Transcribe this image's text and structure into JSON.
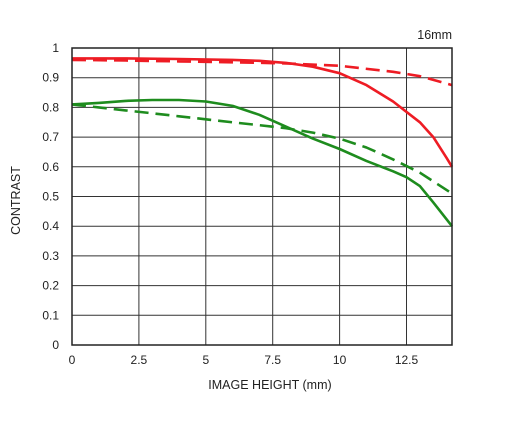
{
  "chart_data": {
    "type": "line",
    "title": "16mm",
    "xlabel": "IMAGE HEIGHT (mm)",
    "ylabel": "CONTRAST",
    "xlim": [
      0,
      14.2
    ],
    "ylim": [
      0,
      1
    ],
    "xticks": [
      0,
      2.5,
      5,
      7.5,
      10,
      12.5
    ],
    "xtick_labels": [
      "0",
      "2.5",
      "5",
      "7.5",
      "10",
      "12.5"
    ],
    "yticks": [
      0,
      0.1,
      0.2,
      0.3,
      0.4,
      0.5,
      0.6,
      0.7,
      0.8,
      0.9,
      1
    ],
    "ytick_labels": [
      "0",
      "0.1",
      "0.2",
      "0.3",
      "0.4",
      "0.5",
      "0.6",
      "0.7",
      "0.8",
      "0.9",
      "1"
    ],
    "grid": true,
    "series": [
      {
        "color": "#ee1c24",
        "dash": "solid",
        "x": [
          0,
          2,
          4,
          6,
          7,
          8,
          9,
          10,
          11,
          12,
          13,
          13.5,
          14,
          14.2
        ],
        "y": [
          0.965,
          0.965,
          0.963,
          0.96,
          0.957,
          0.95,
          0.937,
          0.915,
          0.875,
          0.82,
          0.75,
          0.7,
          0.63,
          0.6
        ]
      },
      {
        "color": "#ee1c24",
        "dash": "dashed",
        "x": [
          0,
          2,
          4,
          6,
          8,
          10,
          12,
          13,
          14.2
        ],
        "y": [
          0.96,
          0.958,
          0.955,
          0.952,
          0.948,
          0.94,
          0.92,
          0.905,
          0.875
        ]
      },
      {
        "color": "#1e8c1e",
        "dash": "solid",
        "x": [
          0,
          1,
          2,
          3,
          4,
          5,
          6,
          7,
          8,
          9,
          10,
          11,
          12,
          12.5,
          13,
          13.5,
          14.2
        ],
        "y": [
          0.81,
          0.815,
          0.822,
          0.825,
          0.825,
          0.82,
          0.805,
          0.775,
          0.735,
          0.695,
          0.66,
          0.62,
          0.585,
          0.565,
          0.535,
          0.48,
          0.4
        ]
      },
      {
        "color": "#1e8c1e",
        "dash": "dashed",
        "x": [
          0,
          1,
          2,
          3,
          4,
          5,
          6,
          7,
          8,
          9,
          10,
          11,
          12,
          13,
          14.2
        ],
        "y": [
          0.81,
          0.8,
          0.79,
          0.78,
          0.77,
          0.76,
          0.75,
          0.74,
          0.73,
          0.715,
          0.695,
          0.665,
          0.625,
          0.58,
          0.51
        ]
      }
    ]
  }
}
